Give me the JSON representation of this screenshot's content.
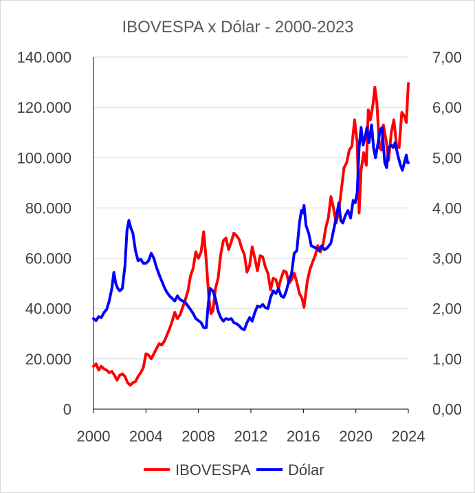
{
  "chart_data": {
    "type": "line",
    "title": "IBOVESPA x Dólar - 2000-2023",
    "x_ticks": [
      "2000",
      "2004",
      "2008",
      "2012",
      "2016",
      "2020",
      "2024"
    ],
    "xlim": [
      2000,
      2024
    ],
    "y_left": {
      "ticks": [
        "0",
        "20.000",
        "40.000",
        "60.000",
        "80.000",
        "100.000",
        "120.000",
        "140.000"
      ],
      "ylim": [
        0,
        140000
      ]
    },
    "y_right": {
      "ticks": [
        "0,00",
        "1,00",
        "2,00",
        "3,00",
        "4,00",
        "5,00",
        "6,00",
        "7,00"
      ],
      "ylim": [
        0,
        7
      ]
    },
    "grid": "horizontal",
    "legend": "bottom",
    "series": [
      {
        "name": "IBOVESPA",
        "color": "#ff0000",
        "axis": "left",
        "points": [
          [
            2000.0,
            17000
          ],
          [
            2000.2,
            18000
          ],
          [
            2000.4,
            15500
          ],
          [
            2000.6,
            17000
          ],
          [
            2000.8,
            16000
          ],
          [
            2001.0,
            15500
          ],
          [
            2001.2,
            14500
          ],
          [
            2001.4,
            15000
          ],
          [
            2001.6,
            13500
          ],
          [
            2001.8,
            11500
          ],
          [
            2002.0,
            13500
          ],
          [
            2002.2,
            14000
          ],
          [
            2002.4,
            13000
          ],
          [
            2002.6,
            10500
          ],
          [
            2002.8,
            9500
          ],
          [
            2003.0,
            10500
          ],
          [
            2003.2,
            11000
          ],
          [
            2003.4,
            13000
          ],
          [
            2003.6,
            14500
          ],
          [
            2003.8,
            16500
          ],
          [
            2004.0,
            22000
          ],
          [
            2004.2,
            21500
          ],
          [
            2004.4,
            20000
          ],
          [
            2004.6,
            22000
          ],
          [
            2004.8,
            24000
          ],
          [
            2005.0,
            26000
          ],
          [
            2005.2,
            25500
          ],
          [
            2005.4,
            27000
          ],
          [
            2005.6,
            29500
          ],
          [
            2005.8,
            32000
          ],
          [
            2006.0,
            35000
          ],
          [
            2006.2,
            38500
          ],
          [
            2006.4,
            36000
          ],
          [
            2006.6,
            37500
          ],
          [
            2006.8,
            40500
          ],
          [
            2007.0,
            43500
          ],
          [
            2007.2,
            47000
          ],
          [
            2007.4,
            53000
          ],
          [
            2007.6,
            56000
          ],
          [
            2007.8,
            62500
          ],
          [
            2008.0,
            60000
          ],
          [
            2008.2,
            62500
          ],
          [
            2008.4,
            70500
          ],
          [
            2008.6,
            59000
          ],
          [
            2008.8,
            44000
          ],
          [
            2008.95,
            38000
          ],
          [
            2009.1,
            39000
          ],
          [
            2009.3,
            48000
          ],
          [
            2009.5,
            52000
          ],
          [
            2009.7,
            61500
          ],
          [
            2009.9,
            67000
          ],
          [
            2010.1,
            68000
          ],
          [
            2010.3,
            63500
          ],
          [
            2010.5,
            66500
          ],
          [
            2010.7,
            70000
          ],
          [
            2010.9,
            69000
          ],
          [
            2011.1,
            67500
          ],
          [
            2011.3,
            64000
          ],
          [
            2011.5,
            61500
          ],
          [
            2011.7,
            54500
          ],
          [
            2011.9,
            57000
          ],
          [
            2012.1,
            64500
          ],
          [
            2012.3,
            60000
          ],
          [
            2012.5,
            55000
          ],
          [
            2012.7,
            61000
          ],
          [
            2012.9,
            60500
          ],
          [
            2013.1,
            56500
          ],
          [
            2013.3,
            54000
          ],
          [
            2013.5,
            47500
          ],
          [
            2013.7,
            52000
          ],
          [
            2013.9,
            51500
          ],
          [
            2014.1,
            48000
          ],
          [
            2014.3,
            52000
          ],
          [
            2014.5,
            55000
          ],
          [
            2014.7,
            54500
          ],
          [
            2014.9,
            50000
          ],
          [
            2015.1,
            51500
          ],
          [
            2015.3,
            54000
          ],
          [
            2015.5,
            50500
          ],
          [
            2015.7,
            46000
          ],
          [
            2015.9,
            44000
          ],
          [
            2016.05,
            40500
          ],
          [
            2016.3,
            51000
          ],
          [
            2016.5,
            55500
          ],
          [
            2016.7,
            58500
          ],
          [
            2016.9,
            61000
          ],
          [
            2017.1,
            65000
          ],
          [
            2017.3,
            62500
          ],
          [
            2017.5,
            65500
          ],
          [
            2017.7,
            72000
          ],
          [
            2017.9,
            76000
          ],
          [
            2018.1,
            84500
          ],
          [
            2018.3,
            80000
          ],
          [
            2018.5,
            74000
          ],
          [
            2018.7,
            79000
          ],
          [
            2018.9,
            87500
          ],
          [
            2019.1,
            96000
          ],
          [
            2019.3,
            98000
          ],
          [
            2019.5,
            103000
          ],
          [
            2019.7,
            104500
          ],
          [
            2019.9,
            115000
          ],
          [
            2020.1,
            106000
          ],
          [
            2020.25,
            78000
          ],
          [
            2020.4,
            95000
          ],
          [
            2020.6,
            102000
          ],
          [
            2020.8,
            97000
          ],
          [
            2020.95,
            119000
          ],
          [
            2021.1,
            115000
          ],
          [
            2021.3,
            121000
          ],
          [
            2021.45,
            128000
          ],
          [
            2021.6,
            122000
          ],
          [
            2021.8,
            104000
          ],
          [
            2021.95,
            103000
          ],
          [
            2022.1,
            113000
          ],
          [
            2022.3,
            107000
          ],
          [
            2022.5,
            99000
          ],
          [
            2022.7,
            110000
          ],
          [
            2022.9,
            115000
          ],
          [
            2023.1,
            105000
          ],
          [
            2023.3,
            104000
          ],
          [
            2023.5,
            118000
          ],
          [
            2023.7,
            116500
          ],
          [
            2023.85,
            114000
          ],
          [
            2024.0,
            129500
          ]
        ]
      },
      {
        "name": "Dólar",
        "color": "#0000ff",
        "axis": "right",
        "points": [
          [
            2000.0,
            1.8
          ],
          [
            2000.2,
            1.76
          ],
          [
            2000.4,
            1.84
          ],
          [
            2000.6,
            1.82
          ],
          [
            2000.8,
            1.92
          ],
          [
            2001.0,
            1.98
          ],
          [
            2001.2,
            2.15
          ],
          [
            2001.4,
            2.4
          ],
          [
            2001.55,
            2.72
          ],
          [
            2001.7,
            2.5
          ],
          [
            2001.85,
            2.4
          ],
          [
            2002.0,
            2.35
          ],
          [
            2002.2,
            2.4
          ],
          [
            2002.4,
            2.85
          ],
          [
            2002.55,
            3.55
          ],
          [
            2002.7,
            3.75
          ],
          [
            2002.85,
            3.6
          ],
          [
            2003.0,
            3.5
          ],
          [
            2003.2,
            3.15
          ],
          [
            2003.4,
            2.95
          ],
          [
            2003.6,
            2.98
          ],
          [
            2003.8,
            2.9
          ],
          [
            2004.0,
            2.9
          ],
          [
            2004.2,
            2.95
          ],
          [
            2004.4,
            3.1
          ],
          [
            2004.6,
            3.0
          ],
          [
            2004.8,
            2.82
          ],
          [
            2005.0,
            2.68
          ],
          [
            2005.2,
            2.55
          ],
          [
            2005.4,
            2.42
          ],
          [
            2005.6,
            2.32
          ],
          [
            2005.8,
            2.25
          ],
          [
            2006.0,
            2.2
          ],
          [
            2006.2,
            2.15
          ],
          [
            2006.4,
            2.25
          ],
          [
            2006.6,
            2.18
          ],
          [
            2006.8,
            2.15
          ],
          [
            2007.0,
            2.12
          ],
          [
            2007.2,
            2.05
          ],
          [
            2007.4,
            1.98
          ],
          [
            2007.6,
            1.9
          ],
          [
            2007.8,
            1.8
          ],
          [
            2008.0,
            1.76
          ],
          [
            2008.2,
            1.72
          ],
          [
            2008.4,
            1.62
          ],
          [
            2008.6,
            1.62
          ],
          [
            2008.75,
            2.1
          ],
          [
            2008.9,
            2.4
          ],
          [
            2009.1,
            2.35
          ],
          [
            2009.3,
            2.2
          ],
          [
            2009.5,
            1.95
          ],
          [
            2009.7,
            1.82
          ],
          [
            2009.9,
            1.75
          ],
          [
            2010.1,
            1.8
          ],
          [
            2010.3,
            1.78
          ],
          [
            2010.5,
            1.8
          ],
          [
            2010.7,
            1.72
          ],
          [
            2010.9,
            1.7
          ],
          [
            2011.1,
            1.66
          ],
          [
            2011.3,
            1.6
          ],
          [
            2011.5,
            1.58
          ],
          [
            2011.7,
            1.72
          ],
          [
            2011.9,
            1.82
          ],
          [
            2012.1,
            1.75
          ],
          [
            2012.3,
            1.92
          ],
          [
            2012.5,
            2.05
          ],
          [
            2012.7,
            2.03
          ],
          [
            2012.9,
            2.08
          ],
          [
            2013.1,
            2.02
          ],
          [
            2013.3,
            2.0
          ],
          [
            2013.5,
            2.22
          ],
          [
            2013.7,
            2.35
          ],
          [
            2013.9,
            2.3
          ],
          [
            2014.1,
            2.4
          ],
          [
            2014.3,
            2.25
          ],
          [
            2014.5,
            2.22
          ],
          [
            2014.7,
            2.35
          ],
          [
            2014.9,
            2.55
          ],
          [
            2015.1,
            2.7
          ],
          [
            2015.3,
            3.1
          ],
          [
            2015.5,
            3.15
          ],
          [
            2015.7,
            3.7
          ],
          [
            2015.85,
            3.95
          ],
          [
            2015.95,
            3.9
          ],
          [
            2016.05,
            4.05
          ],
          [
            2016.2,
            3.65
          ],
          [
            2016.4,
            3.5
          ],
          [
            2016.6,
            3.25
          ],
          [
            2016.8,
            3.22
          ],
          [
            2017.0,
            3.2
          ],
          [
            2017.2,
            3.15
          ],
          [
            2017.4,
            3.25
          ],
          [
            2017.6,
            3.17
          ],
          [
            2017.8,
            3.2
          ],
          [
            2017.95,
            3.25
          ],
          [
            2018.1,
            3.3
          ],
          [
            2018.3,
            3.55
          ],
          [
            2018.5,
            3.8
          ],
          [
            2018.7,
            4.1
          ],
          [
            2018.85,
            3.75
          ],
          [
            2019.0,
            3.7
          ],
          [
            2019.2,
            3.85
          ],
          [
            2019.4,
            3.95
          ],
          [
            2019.6,
            3.8
          ],
          [
            2019.8,
            4.15
          ],
          [
            2019.95,
            4.1
          ],
          [
            2020.1,
            4.3
          ],
          [
            2020.25,
            5.2
          ],
          [
            2020.4,
            5.6
          ],
          [
            2020.55,
            5.25
          ],
          [
            2020.7,
            5.4
          ],
          [
            2020.85,
            5.6
          ],
          [
            2021.0,
            5.3
          ],
          [
            2021.2,
            5.65
          ],
          [
            2021.35,
            5.2
          ],
          [
            2021.5,
            5.0
          ],
          [
            2021.7,
            5.3
          ],
          [
            2021.85,
            5.55
          ],
          [
            2022.0,
            5.6
          ],
          [
            2022.2,
            4.9
          ],
          [
            2022.35,
            4.8
          ],
          [
            2022.5,
            5.2
          ],
          [
            2022.7,
            5.25
          ],
          [
            2022.85,
            5.2
          ],
          [
            2023.0,
            5.3
          ],
          [
            2023.2,
            5.05
          ],
          [
            2023.4,
            4.85
          ],
          [
            2023.55,
            4.75
          ],
          [
            2023.75,
            4.95
          ],
          [
            2023.85,
            5.05
          ],
          [
            2023.95,
            4.9
          ],
          [
            2024.0,
            4.9
          ]
        ]
      }
    ]
  }
}
